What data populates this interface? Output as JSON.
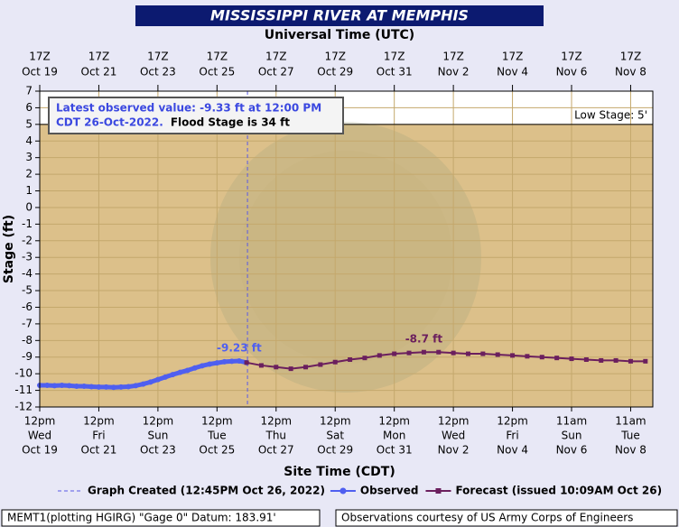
{
  "chart_data": {
    "type": "hydrograph",
    "title": "MISSISSIPPI RIVER AT MEMPHIS",
    "x2_label": "Universal Time (UTC)",
    "x_label": "Site Time (CDT)",
    "y_label": "Stage (ft)",
    "xlim": [
      "Oct 19 17Z",
      "Nov 9 11Z"
    ],
    "ylim": [
      -12,
      7
    ],
    "yticks": [
      -12,
      -11,
      -10,
      -9,
      -8,
      -7,
      -6,
      -5,
      -4,
      -3,
      -2,
      -1,
      0,
      1,
      2,
      3,
      4,
      5,
      6,
      7
    ],
    "xticks": [
      {
        "value": "Oct 19 17Z",
        "label": [
          "12pm",
          "Wed",
          "Oct 19"
        ]
      },
      {
        "value": "Oct 21 17Z",
        "label": [
          "12pm",
          "Fri",
          "Oct 21"
        ]
      },
      {
        "value": "Oct 23 17Z",
        "label": [
          "12pm",
          "Sun",
          "Oct 23"
        ]
      },
      {
        "value": "Oct 25 17Z",
        "label": [
          "12pm",
          "Tue",
          "Oct 25"
        ]
      },
      {
        "value": "Oct 27 17Z",
        "label": [
          "12pm",
          "Thu",
          "Oct 27"
        ]
      },
      {
        "value": "Oct 29 17Z",
        "label": [
          "12pm",
          "Sat",
          "Oct 29"
        ]
      },
      {
        "value": "Oct 31 17Z",
        "label": [
          "12pm",
          "Mon",
          "Oct 31"
        ]
      },
      {
        "value": "Nov 2 17Z",
        "label": [
          "12pm",
          "Wed",
          "Nov 2"
        ]
      },
      {
        "value": "Nov 4 17Z",
        "label": [
          "12pm",
          "Fri",
          "Nov 4"
        ]
      },
      {
        "value": "Nov 6 17Z",
        "label": [
          "11am",
          "Sun",
          "Nov 6"
        ]
      },
      {
        "value": "Nov 8 17Z",
        "label": [
          "11am",
          "Tue",
          "Nov 8"
        ]
      }
    ],
    "x2ticks": [
      {
        "value": "Oct 19 17Z",
        "label": [
          "17Z",
          "Oct 19"
        ]
      },
      {
        "value": "Oct 21 17Z",
        "label": [
          "17Z",
          "Oct 21"
        ]
      },
      {
        "value": "Oct 23 17Z",
        "label": [
          "17Z",
          "Oct 23"
        ]
      },
      {
        "value": "Oct 25 17Z",
        "label": [
          "17Z",
          "Oct 25"
        ]
      },
      {
        "value": "Oct 27 17Z",
        "label": [
          "17Z",
          "Oct 27"
        ]
      },
      {
        "value": "Oct 29 17Z",
        "label": [
          "17Z",
          "Oct 29"
        ]
      },
      {
        "value": "Oct 31 17Z",
        "label": [
          "17Z",
          "Oct 31"
        ]
      },
      {
        "value": "Nov 2 17Z",
        "label": [
          "17Z",
          "Nov 2"
        ]
      },
      {
        "value": "Nov 4 17Z",
        "label": [
          "17Z",
          "Nov 4"
        ]
      },
      {
        "value": "Nov 6 17Z",
        "label": [
          "17Z",
          "Nov 6"
        ]
      },
      {
        "value": "Nov 8 17Z",
        "label": [
          "17Z",
          "Nov 8"
        ]
      }
    ],
    "grid": true,
    "low_stage": 5,
    "low_stage_label": "Low Stage: 5'",
    "graph_created": {
      "x": "Oct 26 17:45Z",
      "name": "Graph Created (12:45PM Oct 26, 2022)",
      "color": "#5a5ae6"
    },
    "series": [
      {
        "name": "Observed",
        "color": "#4f5ff0",
        "marker": "circle",
        "x": [
          "Oct 19 17Z",
          "Oct 19 23Z",
          "Oct 20 05Z",
          "Oct 20 11Z",
          "Oct 20 17Z",
          "Oct 20 23Z",
          "Oct 21 05Z",
          "Oct 21 11Z",
          "Oct 21 17Z",
          "Oct 21 23Z",
          "Oct 22 05Z",
          "Oct 22 11Z",
          "Oct 22 17Z",
          "Oct 22 23Z",
          "Oct 23 05Z",
          "Oct 23 11Z",
          "Oct 23 17Z",
          "Oct 23 23Z",
          "Oct 24 05Z",
          "Oct 24 11Z",
          "Oct 24 17Z",
          "Oct 24 23Z",
          "Oct 25 05Z",
          "Oct 25 11Z",
          "Oct 25 17Z",
          "Oct 25 23Z",
          "Oct 26 05Z",
          "Oct 26 11Z",
          "Oct 26 17Z"
        ],
        "values": [
          -10.7,
          -10.7,
          -10.72,
          -10.7,
          -10.72,
          -10.75,
          -10.75,
          -10.78,
          -10.8,
          -10.8,
          -10.82,
          -10.8,
          -10.78,
          -10.72,
          -10.62,
          -10.5,
          -10.35,
          -10.2,
          -10.05,
          -9.92,
          -9.8,
          -9.65,
          -9.52,
          -9.42,
          -9.35,
          -9.28,
          -9.25,
          -9.23,
          -9.33
        ]
      },
      {
        "name": "Forecast (issued 10:09AM Oct 26)",
        "color": "#6b1f5e",
        "marker": "square",
        "x": [
          "Oct 26 17Z",
          "Oct 27 05Z",
          "Oct 27 17Z",
          "Oct 28 05Z",
          "Oct 28 17Z",
          "Oct 29 05Z",
          "Oct 29 17Z",
          "Oct 30 05Z",
          "Oct 30 17Z",
          "Oct 31 05Z",
          "Oct 31 17Z",
          "Nov 1 05Z",
          "Nov 1 17Z",
          "Nov 2 05Z",
          "Nov 2 17Z",
          "Nov 3 05Z",
          "Nov 3 17Z",
          "Nov 4 05Z",
          "Nov 4 17Z",
          "Nov 5 05Z",
          "Nov 5 17Z",
          "Nov 6 05Z",
          "Nov 6 17Z",
          "Nov 7 05Z",
          "Nov 7 17Z",
          "Nov 8 05Z",
          "Nov 8 17Z",
          "Nov 9 05Z"
        ],
        "values": [
          -9.33,
          -9.5,
          -9.6,
          -9.7,
          -9.6,
          -9.45,
          -9.3,
          -9.15,
          -9.05,
          -8.9,
          -8.8,
          -8.75,
          -8.7,
          -8.7,
          -8.75,
          -8.8,
          -8.8,
          -8.85,
          -8.9,
          -8.95,
          -9.0,
          -9.05,
          -9.1,
          -9.15,
          -9.2,
          -9.2,
          -9.25,
          -9.25
        ]
      }
    ],
    "annotations": [
      {
        "text": "-9.23 ft",
        "x": "Oct 26 11Z",
        "y": -9.23,
        "color": "#4f5ff0"
      },
      {
        "text": "-8.7 ft",
        "x": "Nov 1 17Z",
        "y": -8.7,
        "color": "#6b1f5e"
      }
    ],
    "info_box": {
      "observed_line1": "Latest observed value: -9.33 ft at 12:00 PM",
      "observed_line2": "CDT 26-Oct-2022.",
      "flood_stage": "Flood Stage is 34 ft"
    },
    "footer_left": "MEMT1(plotting HGIRG) \"Gage 0\" Datum: 183.91'",
    "footer_right": "Observations courtesy of US Army Corps of Engineers"
  }
}
